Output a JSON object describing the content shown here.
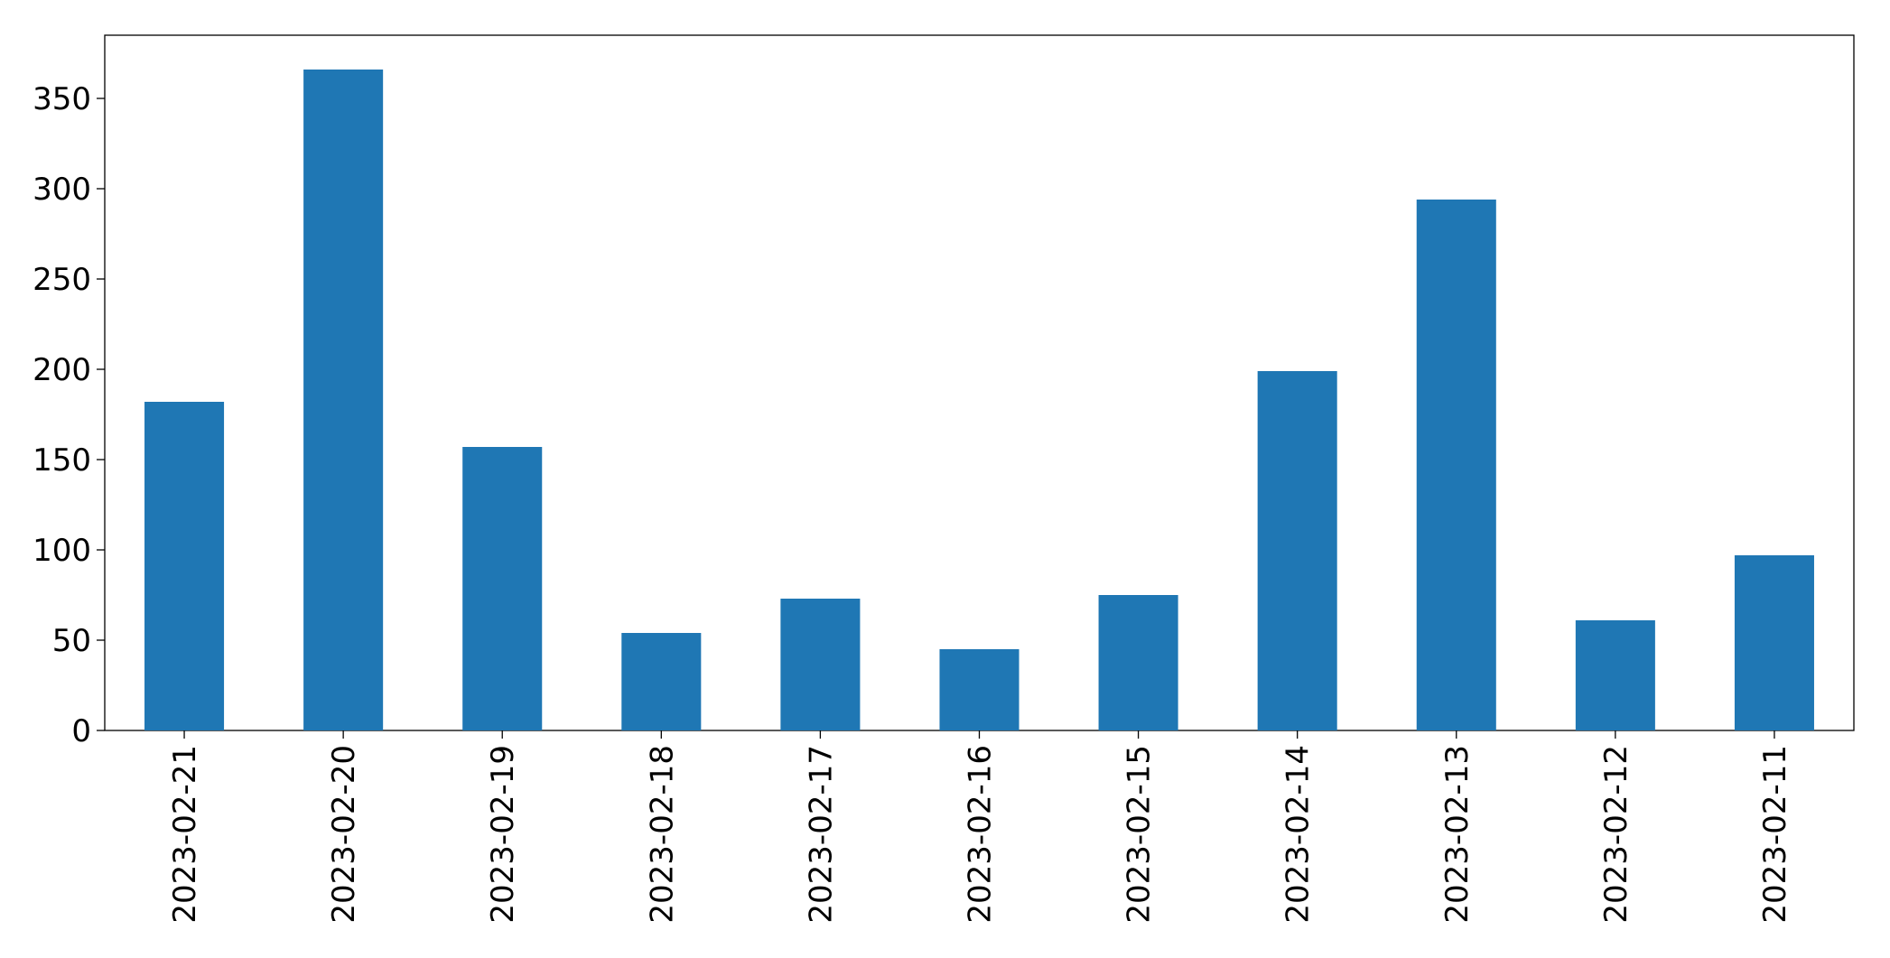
{
  "chart_data": {
    "type": "bar",
    "categories": [
      "2023-02-21",
      "2023-02-20",
      "2023-02-19",
      "2023-02-18",
      "2023-02-17",
      "2023-02-16",
      "2023-02-15",
      "2023-02-14",
      "2023-02-13",
      "2023-02-12",
      "2023-02-11"
    ],
    "values": [
      182,
      366,
      157,
      54,
      73,
      45,
      75,
      199,
      294,
      61,
      97
    ],
    "color": "#1f77b4",
    "ylim": [
      0,
      385
    ],
    "yticks": [
      0,
      50,
      100,
      150,
      200,
      250,
      300,
      350
    ],
    "grid": false
  }
}
